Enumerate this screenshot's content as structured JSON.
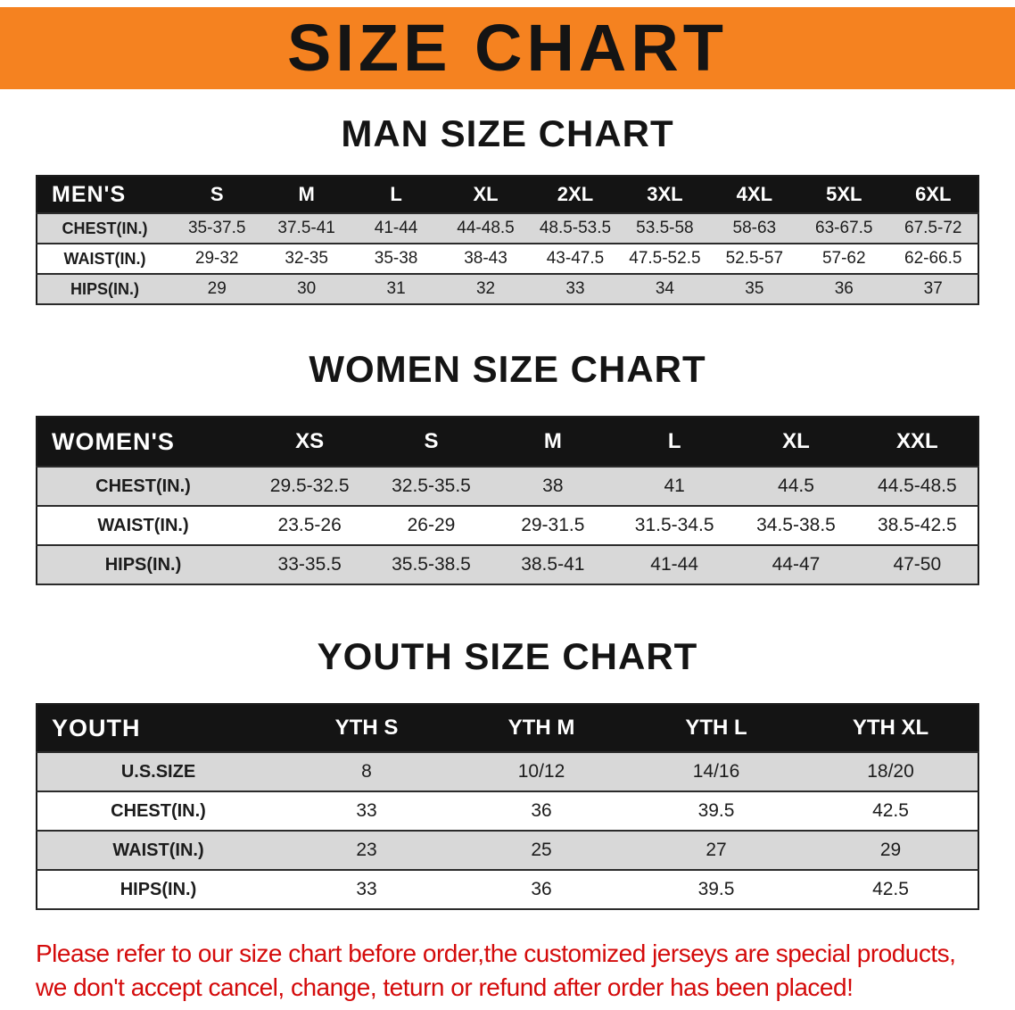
{
  "banner": {
    "title": "SIZE CHART",
    "background_color": "#f58220",
    "text_color": "#141414"
  },
  "colors": {
    "table_header_bg": "#141414",
    "table_header_text": "#ffffff",
    "row_gray": "#d8d8d8",
    "row_white": "#ffffff",
    "disclaimer_red": "#d40b0b"
  },
  "sections": [
    {
      "heading": "MAN SIZE CHART",
      "table": {
        "header": [
          "MEN'S",
          "S",
          "M",
          "L",
          "XL",
          "2XL",
          "3XL",
          "4XL",
          "5XL",
          "6XL"
        ],
        "rows": [
          [
            "CHEST(IN.)",
            "35-37.5",
            "37.5-41",
            "41-44",
            "44-48.5",
            "48.5-53.5",
            "53.5-58",
            "58-63",
            "63-67.5",
            "67.5-72"
          ],
          [
            "WAIST(IN.)",
            "29-32",
            "32-35",
            "35-38",
            "38-43",
            "43-47.5",
            "47.5-52.5",
            "52.5-57",
            "57-62",
            "62-66.5"
          ],
          [
            "HIPS(IN.)",
            "29",
            "30",
            "31",
            "32",
            "33",
            "34",
            "35",
            "36",
            "37"
          ]
        ]
      }
    },
    {
      "heading": "WOMEN SIZE CHART",
      "table": {
        "header": [
          "WOMEN'S",
          "XS",
          "S",
          "M",
          "L",
          "XL",
          "XXL"
        ],
        "rows": [
          [
            "CHEST(IN.)",
            "29.5-32.5",
            "32.5-35.5",
            "38",
            "41",
            "44.5",
            "44.5-48.5"
          ],
          [
            "WAIST(IN.)",
            "23.5-26",
            "26-29",
            "29-31.5",
            "31.5-34.5",
            "34.5-38.5",
            "38.5-42.5"
          ],
          [
            "HIPS(IN.)",
            "33-35.5",
            "35.5-38.5",
            "38.5-41",
            "41-44",
            "44-47",
            "47-50"
          ]
        ]
      }
    },
    {
      "heading": "YOUTH SIZE CHART",
      "table": {
        "header": [
          "YOUTH",
          "YTH S",
          "YTH M",
          "YTH L",
          "YTH XL"
        ],
        "rows": [
          [
            "U.S.SIZE",
            "8",
            "10/12",
            "14/16",
            "18/20"
          ],
          [
            "CHEST(IN.)",
            "33",
            "36",
            "39.5",
            "42.5"
          ],
          [
            "WAIST(IN.)",
            "23",
            "25",
            "27",
            "29"
          ],
          [
            "HIPS(IN.)",
            "33",
            "36",
            "39.5",
            "42.5"
          ]
        ]
      }
    }
  ],
  "disclaimer": {
    "line1": "Please refer to our size chart before order,the customized jerseys are special products,",
    "line2": "we don't accept cancel, change, teturn or refund after order has been placed!"
  }
}
